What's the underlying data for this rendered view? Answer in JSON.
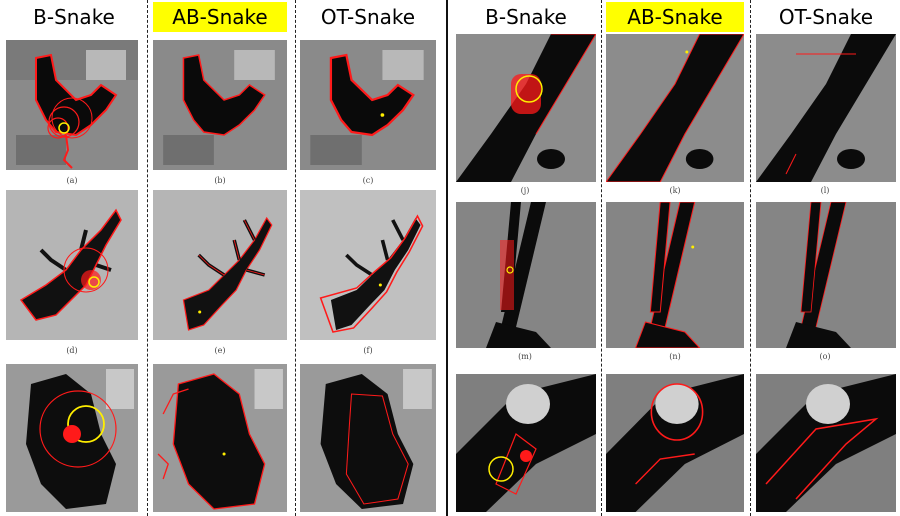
{
  "left_group": {
    "titles": [
      "B-Snake",
      "AB-Snake",
      "OT-Snake"
    ],
    "captions": [
      "(a)",
      "(b)",
      "(c)",
      "(d)",
      "(e)",
      "(f)"
    ]
  },
  "right_group": {
    "titles": [
      "B-Snake",
      "AB-Snake",
      "OT-Snake"
    ],
    "captions": [
      "(j)",
      "(k)",
      "(l)",
      "(m)",
      "(n)",
      "(o)"
    ]
  },
  "colors": {
    "contour": "#ff1a1a",
    "init_circle": "#ffee00",
    "title_highlight": "#ffff00"
  }
}
